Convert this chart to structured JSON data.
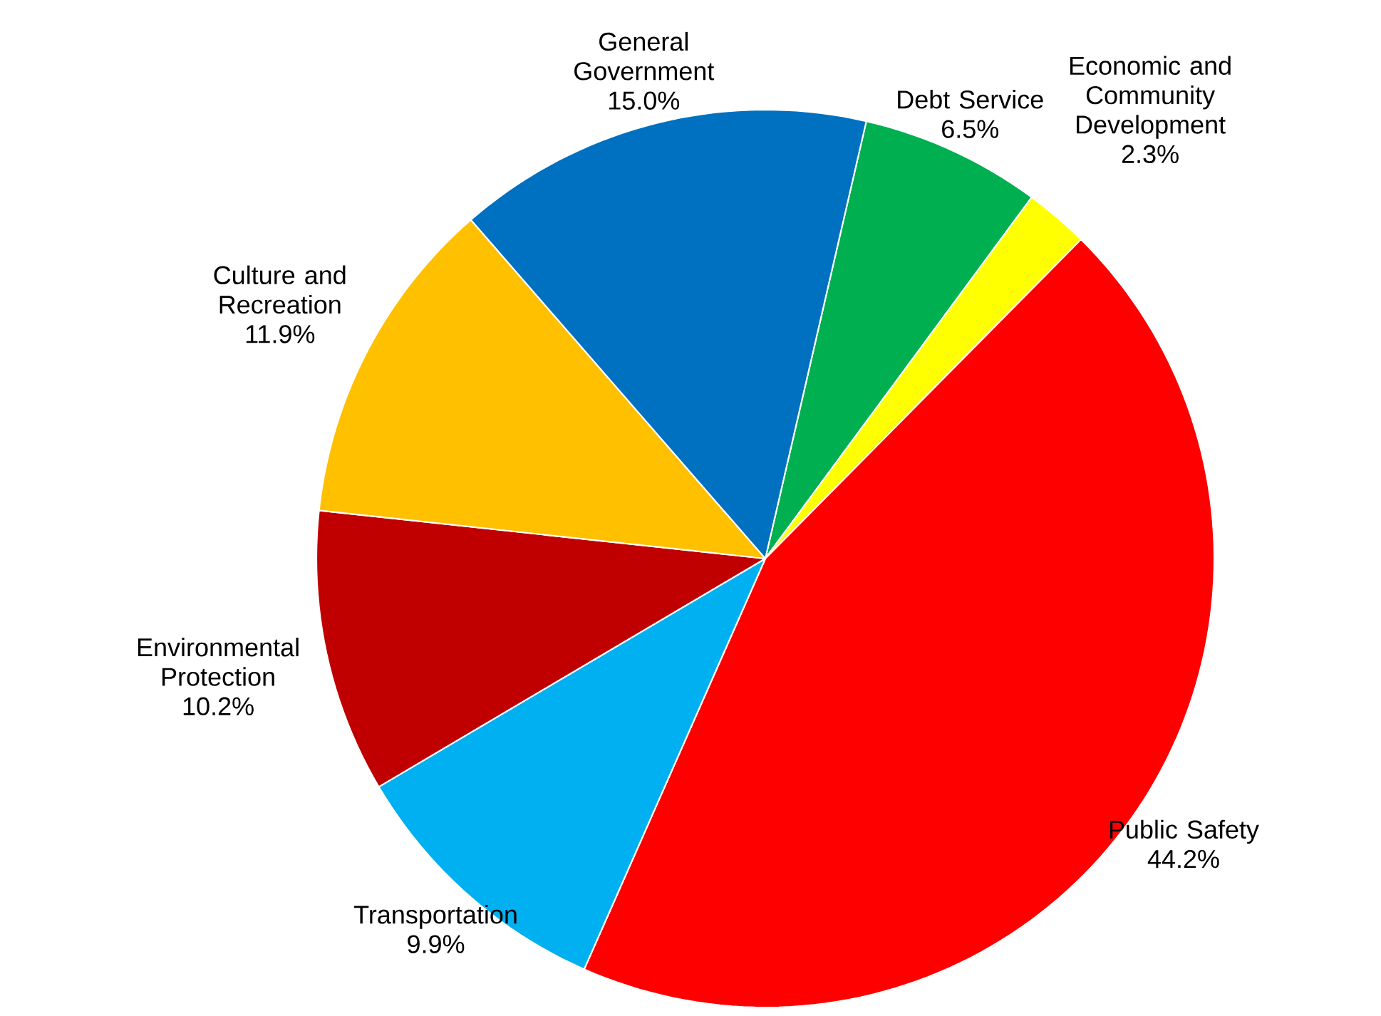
{
  "chart_data": {
    "type": "pie",
    "categories": [
      "Debt Service",
      "Economic and Community Development",
      "Public Safety",
      "Transportation",
      "Environmental Protection",
      "Culture and Recreation",
      "General Government"
    ],
    "values": [
      6.5,
      2.3,
      44.2,
      9.9,
      10.2,
      11.9,
      15.0
    ],
    "colors": [
      "#00b050",
      "#ffff00",
      "#ff0000",
      "#00b0f0",
      "#c00000",
      "#ffc000",
      "#0070c0"
    ],
    "data_labels": true,
    "value_labels": [
      "6.5%",
      "2.3%",
      "44.2%",
      "9.9%",
      "10.2%",
      "11.9%",
      "15.0%"
    ]
  }
}
